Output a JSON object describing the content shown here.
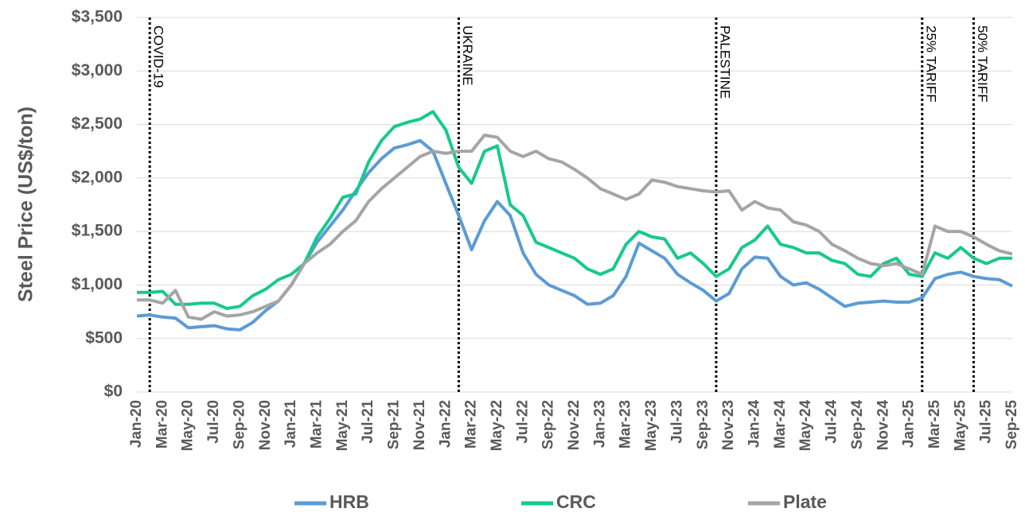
{
  "chart_data": {
    "type": "line",
    "y_label": "Steel Price (US$/ton)",
    "categories": [
      "Jan-20",
      null,
      "Mar-20",
      null,
      "May-20",
      null,
      "Jul-20",
      null,
      "Sep-20",
      null,
      "Nov-20",
      null,
      "Jan-21",
      null,
      "Mar-21",
      null,
      "May-21",
      null,
      "Jul-21",
      null,
      "Sep-21",
      null,
      "Nov-21",
      null,
      "Jan-22",
      null,
      "Mar-22",
      null,
      "May-22",
      null,
      "Jul-22",
      null,
      "Sep-22",
      null,
      "Nov-22",
      null,
      "Jan-23",
      null,
      "Mar-23",
      null,
      "May-23",
      null,
      "Jul-23",
      null,
      "Sep-23",
      null,
      "Nov-23",
      null,
      "Jan-24",
      null,
      "Mar-24",
      null,
      "May-24",
      null,
      "Jul-24",
      null,
      "Sep-24",
      null,
      "Nov-24",
      null,
      "Jan-25",
      null,
      "Mar-25",
      null,
      "May-25",
      null,
      "Jul-25",
      null,
      "Sep-25"
    ],
    "series": [
      {
        "name": "HRB",
        "color": "#5b9bd5",
        "values": [
          710,
          720,
          700,
          690,
          600,
          610,
          620,
          590,
          580,
          650,
          760,
          850,
          1000,
          1200,
          1400,
          1550,
          1700,
          1880,
          2050,
          2180,
          2280,
          2310,
          2350,
          2250,
          1950,
          1650,
          1330,
          1600,
          1780,
          1650,
          1300,
          1100,
          1000,
          950,
          900,
          820,
          830,
          900,
          1080,
          1390,
          1320,
          1250,
          1100,
          1020,
          950,
          850,
          920,
          1150,
          1260,
          1250,
          1080,
          1000,
          1020,
          960,
          880,
          800,
          830,
          840,
          850,
          840,
          840,
          880,
          1060,
          1100,
          1120,
          1080,
          1060,
          1050,
          990
        ]
      },
      {
        "name": "CRC",
        "color": "#17c98e",
        "values": [
          930,
          930,
          940,
          820,
          820,
          830,
          830,
          780,
          800,
          900,
          960,
          1050,
          1100,
          1200,
          1450,
          1620,
          1820,
          1850,
          2150,
          2350,
          2480,
          2520,
          2550,
          2620,
          2450,
          2100,
          1950,
          2250,
          2300,
          1750,
          1650,
          1400,
          1350,
          1300,
          1250,
          1150,
          1100,
          1150,
          1380,
          1500,
          1450,
          1430,
          1250,
          1300,
          1200,
          1080,
          1150,
          1350,
          1420,
          1550,
          1380,
          1350,
          1300,
          1300,
          1230,
          1200,
          1100,
          1080,
          1200,
          1250,
          1100,
          1080,
          1300,
          1250,
          1350,
          1250,
          1200,
          1250,
          1250
        ]
      },
      {
        "name": "Plate",
        "color": "#a5a5a5",
        "values": [
          860,
          860,
          830,
          950,
          700,
          680,
          750,
          710,
          720,
          750,
          800,
          850,
          1000,
          1200,
          1300,
          1380,
          1500,
          1600,
          1780,
          1900,
          2000,
          2100,
          2200,
          2250,
          2230,
          2250,
          2250,
          2400,
          2380,
          2250,
          2200,
          2250,
          2180,
          2150,
          2080,
          2000,
          1900,
          1850,
          1800,
          1850,
          1980,
          1960,
          1920,
          1900,
          1880,
          1870,
          1880,
          1700,
          1780,
          1720,
          1700,
          1590,
          1560,
          1500,
          1380,
          1320,
          1250,
          1200,
          1180,
          1200,
          1150,
          1100,
          1550,
          1500,
          1500,
          1450,
          1380,
          1320,
          1290
        ]
      }
    ],
    "ylim": [
      0,
      3500
    ],
    "yticks": [
      {
        "value": 0,
        "label": "$0"
      },
      {
        "value": 500,
        "label": "$500"
      },
      {
        "value": 1000,
        "label": "$1,000"
      },
      {
        "value": 1500,
        "label": "$1,500"
      },
      {
        "value": 2000,
        "label": "$2,000"
      },
      {
        "value": 2500,
        "label": "$2,500"
      },
      {
        "value": 3000,
        "label": "$3,000"
      },
      {
        "value": 3500,
        "label": "$3,500"
      }
    ],
    "grid": true,
    "legend": "bottom",
    "annotations": [
      {
        "text": "COVID-19",
        "category": 1
      },
      {
        "text": "UKRAINE",
        "category": 25
      },
      {
        "text": "PALESTINE",
        "category": 45
      },
      {
        "text": "25% TARIFF",
        "category": 61
      },
      {
        "text": "50% TARIFF",
        "category": 65
      }
    ]
  }
}
